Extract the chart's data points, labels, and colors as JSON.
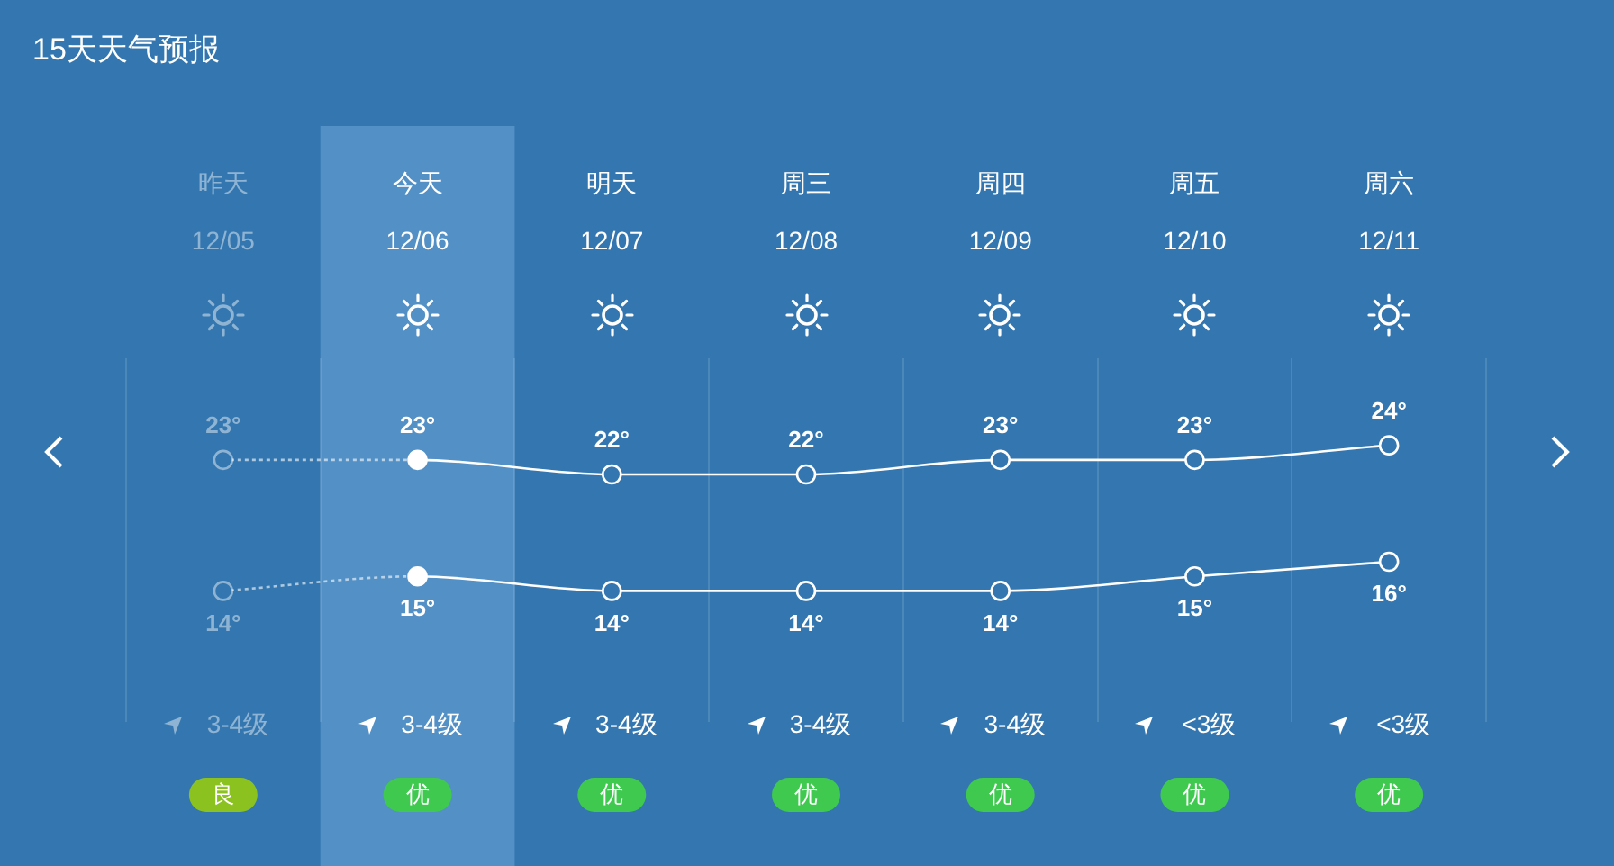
{
  "chart_data": {
    "type": "line",
    "title": "15天天气预报",
    "categories": [
      "昨天\n12/05",
      "今天\n12/06",
      "明天\n12/07",
      "周三\n12/08",
      "周四\n12/09",
      "周五\n12/10",
      "周六\n12/11"
    ],
    "series": [
      {
        "color": "#ffffff",
        "values": [
          23,
          23,
          22,
          22,
          23,
          23,
          24
        ],
        "value_labels": [
          "23°",
          "23°",
          "22°",
          "22°",
          "23°",
          "23°",
          "24°"
        ]
      },
      {
        "color": "#ffffff",
        "values": [
          14,
          15,
          14,
          14,
          14,
          15,
          16
        ],
        "value_labels": [
          "14°",
          "15°",
          "14°",
          "14°",
          "14°",
          "15°",
          "16°"
        ]
      }
    ],
    "marker": "circle",
    "grid": "x",
    "legend": false,
    "tick_labels": "x",
    "bands": [
      {
        "axis": "x",
        "from": "今天\n12/06",
        "to": "今天\n12/06",
        "color": "#5290c6"
      }
    ],
    "annotations": [
      "3-4级",
      "良",
      "3-4级",
      "优",
      "3-4级",
      "优",
      "3-4级",
      "优",
      "3-4级",
      "优",
      "<3级",
      "优",
      "<3级",
      "优"
    ]
  }
}
